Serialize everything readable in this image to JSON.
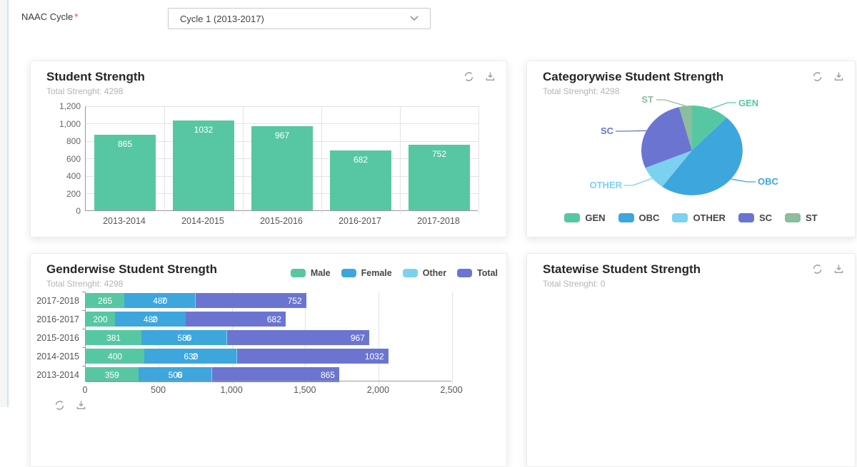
{
  "topbar": {
    "label": "NAAC Cycle",
    "required_marker": "*",
    "cycle_dropdown_value": "Cycle 1 (2013-2017)"
  },
  "palette": {
    "green": "#57c7a3",
    "blue": "#3da6dd",
    "lightblue": "#7cd1f0",
    "purple": "#6b75d1",
    "sage": "#8cbd9c"
  },
  "cards": {
    "student_strength": {
      "title": "Student Strength",
      "subtitle": "Total Strenght: 4298",
      "icons": [
        "refresh",
        "download"
      ],
      "chart_data": {
        "type": "bar",
        "categories": [
          "2013-2014",
          "2014-2015",
          "2015-2016",
          "2016-2017",
          "2017-2018"
        ],
        "values": [
          865,
          1032,
          967,
          682,
          752
        ],
        "bar_color": "#57c7a3",
        "ylim": [
          0,
          1200
        ],
        "yticks": [
          "0",
          "200",
          "400",
          "600",
          "800",
          "1,000",
          "1,200"
        ],
        "grid": true
      }
    },
    "categorywise": {
      "title": "Categorywise Student Strength",
      "subtitle": "Total Strenght: 4298",
      "icons": [
        "refresh",
        "download"
      ],
      "chart_data": {
        "type": "pie",
        "labels": [
          "GEN",
          "OBC",
          "OTHER",
          "SC",
          "ST"
        ],
        "values": [
          515,
          2065,
          370,
          1170,
          178
        ],
        "colors": [
          "#57c7a3",
          "#3da6dd",
          "#7cd1f0",
          "#6b75d1",
          "#8cbd9c"
        ],
        "total": 4298,
        "legend_position": "bottom"
      }
    },
    "genderwise": {
      "title": "Genderwise Student Strength",
      "subtitle": "Total Strenght: 4298",
      "chart_data": {
        "type": "stacked-bar-horizontal",
        "categories": [
          "2017-2018",
          "2016-2017",
          "2015-2016",
          "2014-2015",
          "2013-2014"
        ],
        "series": [
          {
            "name": "Male",
            "color": "#57c7a3",
            "values": [
              265,
              200,
              381,
              400,
              359
            ]
          },
          {
            "name": "Female",
            "color": "#3da6dd",
            "values": [
              480,
              480,
              580,
              630,
              500
            ]
          },
          {
            "name": "Other",
            "color": "#7cd1f0",
            "values": [
              7,
              2,
              6,
              2,
              6
            ]
          },
          {
            "name": "Total",
            "color": "#6b75d1",
            "values": [
              752,
              682,
              967,
              1032,
              865
            ]
          }
        ],
        "xlim": [
          0,
          2500
        ],
        "xticks": [
          "0",
          "500",
          "1,000",
          "1,500",
          "2,000",
          "2,500"
        ],
        "legend_position": "top-right"
      }
    },
    "statewise": {
      "title": "Statewise Student Strength",
      "subtitle": "Total Strenght: 0",
      "icons": [
        "refresh",
        "download"
      ]
    }
  }
}
